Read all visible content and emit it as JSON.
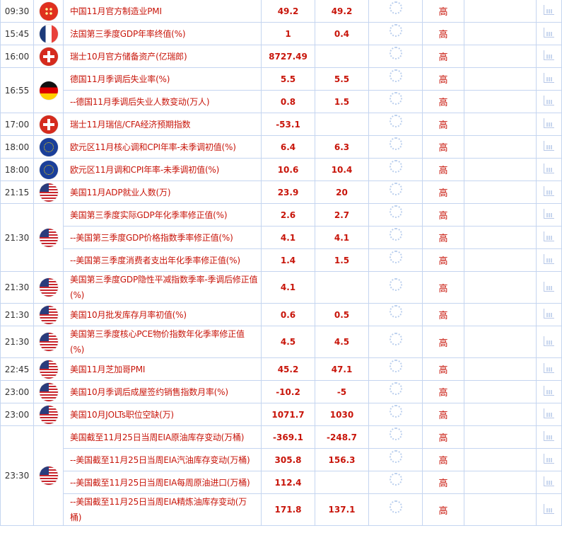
{
  "colors": {
    "text_red": "#c8150a",
    "border": "#c5d5f0"
  },
  "groups": [
    {
      "time": "09:30",
      "flag": "china",
      "events": [
        {
          "name": "中国11月官方制造业PMI",
          "previous": "49.2",
          "forecast": "49.2",
          "importance": "高"
        }
      ]
    },
    {
      "time": "15:45",
      "flag": "france",
      "events": [
        {
          "name": "法国第三季度GDP年率终值(%)",
          "previous": "1",
          "forecast": "0.4",
          "importance": "高"
        }
      ]
    },
    {
      "time": "16:00",
      "flag": "switzerland",
      "events": [
        {
          "name": "瑞士10月官方储备资产(亿瑞郎)",
          "previous": "8727.49",
          "forecast": "",
          "importance": "高"
        }
      ]
    },
    {
      "time": "16:55",
      "flag": "germany",
      "events": [
        {
          "name": "德国11月季调后失业率(%)",
          "previous": "5.5",
          "forecast": "5.5",
          "importance": "高"
        },
        {
          "name": "--德国11月季调后失业人数变动(万人)",
          "previous": "0.8",
          "forecast": "1.5",
          "importance": "高"
        }
      ]
    },
    {
      "time": "17:00",
      "flag": "switzerland",
      "events": [
        {
          "name": "瑞士11月瑞信/CFA经济预期指数",
          "previous": "-53.1",
          "forecast": "",
          "importance": "高"
        }
      ]
    },
    {
      "time": "18:00",
      "flag": "eu",
      "events": [
        {
          "name": "欧元区11月核心调和CPI年率-未季调初值(%)",
          "previous": "6.4",
          "forecast": "6.3",
          "importance": "高"
        }
      ]
    },
    {
      "time": "18:00",
      "flag": "eu",
      "events": [
        {
          "name": "欧元区11月调和CPI年率-未季调初值(%)",
          "previous": "10.6",
          "forecast": "10.4",
          "importance": "高"
        }
      ]
    },
    {
      "time": "21:15",
      "flag": "usa",
      "events": [
        {
          "name": "美国11月ADP就业人数(万)",
          "previous": "23.9",
          "forecast": "20",
          "importance": "高"
        }
      ]
    },
    {
      "time": "21:30",
      "flag": "usa",
      "events": [
        {
          "name": "美国第三季度实际GDP年化季率修正值(%)",
          "previous": "2.6",
          "forecast": "2.7",
          "importance": "高"
        },
        {
          "name": "--美国第三季度GDP价格指数季率修正值(%)",
          "previous": "4.1",
          "forecast": "4.1",
          "importance": "高"
        },
        {
          "name": "--美国第三季度消费者支出年化季率修正值(%)",
          "previous": "1.4",
          "forecast": "1.5",
          "importance": "高"
        }
      ]
    },
    {
      "time": "21:30",
      "flag": "usa",
      "events": [
        {
          "name": "美国第三季度GDP隐性平减指数季率-季调后修正值(%)",
          "previous": "4.1",
          "forecast": "",
          "importance": "高"
        }
      ]
    },
    {
      "time": "21:30",
      "flag": "usa",
      "events": [
        {
          "name": "美国10月批发库存月率初值(%)",
          "previous": "0.6",
          "forecast": "0.5",
          "importance": "高"
        }
      ]
    },
    {
      "time": "21:30",
      "flag": "usa",
      "events": [
        {
          "name": "美国第三季度核心PCE物价指数年化季率修正值(%)",
          "previous": "4.5",
          "forecast": "4.5",
          "importance": "高"
        }
      ]
    },
    {
      "time": "22:45",
      "flag": "usa",
      "events": [
        {
          "name": "美国11月芝加哥PMI",
          "previous": "45.2",
          "forecast": "47.1",
          "importance": "高"
        }
      ]
    },
    {
      "time": "23:00",
      "flag": "usa",
      "events": [
        {
          "name": "美国10月季调后成屋签约销售指数月率(%)",
          "previous": "-10.2",
          "forecast": "-5",
          "importance": "高"
        }
      ]
    },
    {
      "time": "23:00",
      "flag": "usa",
      "events": [
        {
          "name": "美国10月JOLTs职位空缺(万)",
          "previous": "1071.7",
          "forecast": "1030",
          "importance": "高"
        }
      ]
    },
    {
      "time": "23:30",
      "flag": "usa",
      "events": [
        {
          "name": "美国截至11月25日当周EIA原油库存变动(万桶)",
          "previous": "-369.1",
          "forecast": "-248.7",
          "importance": "高"
        },
        {
          "name": "--美国截至11月25日当周EIA汽油库存变动(万桶)",
          "previous": "305.8",
          "forecast": "156.3",
          "importance": "高"
        },
        {
          "name": "--美国截至11月25日当周EIA每周原油进口(万桶)",
          "previous": "112.4",
          "forecast": "",
          "importance": "高"
        },
        {
          "name": "--美国截至11月25日当周EIA精炼油库存变动(万桶)",
          "previous": "171.8",
          "forecast": "137.1",
          "importance": "高"
        }
      ]
    }
  ]
}
